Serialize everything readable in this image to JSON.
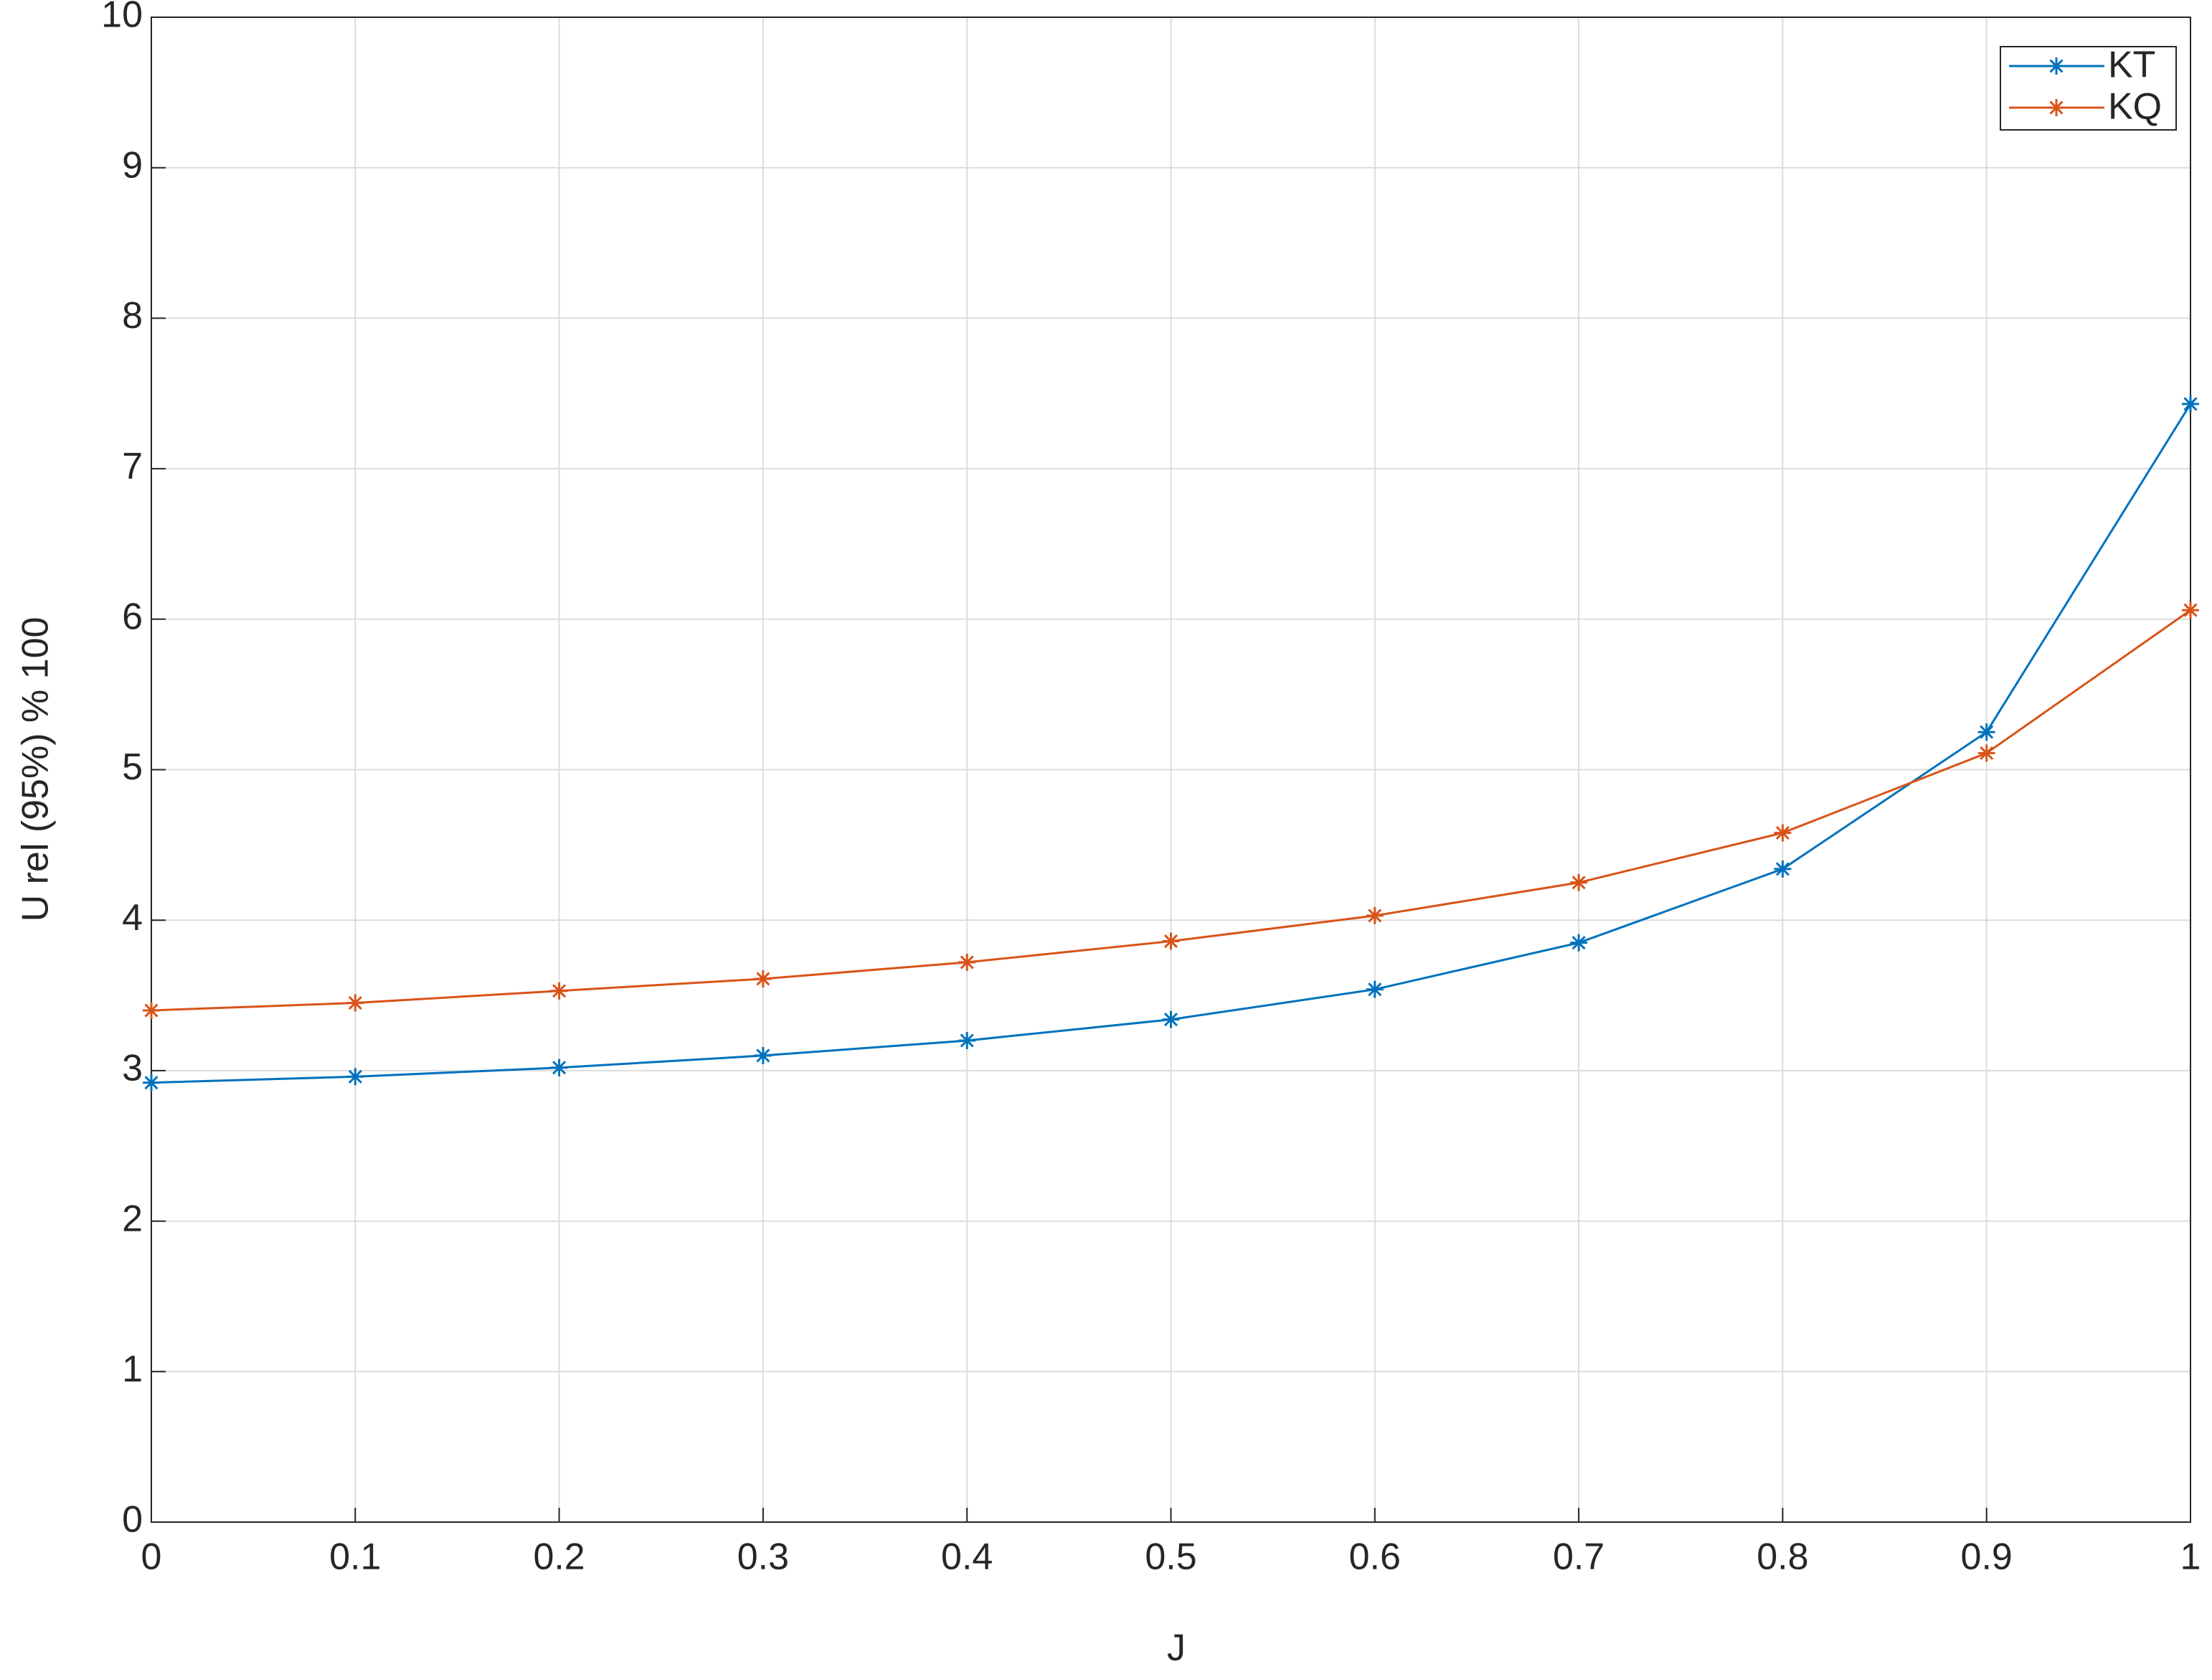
{
  "chart_data": {
    "type": "line",
    "x_label": "J",
    "y_label": "U rel (95%) % 100",
    "x": [
      0,
      0.1,
      0.2,
      0.3,
      0.4,
      0.5,
      0.6,
      0.7,
      0.8,
      0.9,
      1
    ],
    "series": [
      {
        "name": "KT",
        "color": "#0072bd",
        "values": [
          2.92,
          2.96,
          3.02,
          3.1,
          3.2,
          3.34,
          3.54,
          3.85,
          4.34,
          5.25,
          7.43
        ]
      },
      {
        "name": "KQ",
        "color": "#d95319",
        "values": [
          3.4,
          3.45,
          3.53,
          3.61,
          3.72,
          3.86,
          4.03,
          4.25,
          4.58,
          5.11,
          6.06
        ]
      }
    ],
    "xlim": [
      0,
      1
    ],
    "xticks": [
      0,
      0.1,
      0.2,
      0.3,
      0.4,
      0.5,
      0.6,
      0.7,
      0.8,
      0.9,
      1
    ],
    "ylim": [
      0,
      10
    ],
    "yticks": [
      0,
      1,
      2,
      3,
      4,
      5,
      6,
      7,
      8,
      9,
      10
    ],
    "grid": true,
    "legend_position": "top-right",
    "marker": "asterisk"
  }
}
